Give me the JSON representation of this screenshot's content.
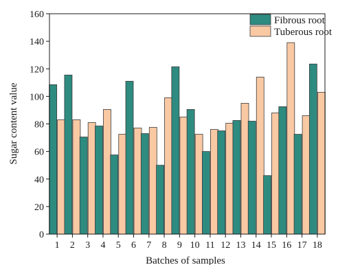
{
  "chart_data": {
    "type": "bar",
    "title": "",
    "xlabel": "Batches of samples",
    "ylabel": "Sugar content value",
    "ylim": [
      0,
      160
    ],
    "yticks": [
      0,
      20,
      40,
      60,
      80,
      100,
      120,
      140,
      160
    ],
    "categories": [
      "1",
      "2",
      "3",
      "4",
      "5",
      "6",
      "7",
      "8",
      "9",
      "10",
      "11",
      "12",
      "13",
      "14",
      "15",
      "16",
      "17",
      "18"
    ],
    "grid": false,
    "legend_position": "top-right",
    "series": [
      {
        "name": "Fibrous root",
        "color": "#2e8b80",
        "values": [
          108.5,
          115.5,
          70.5,
          78.5,
          57.5,
          111,
          73,
          50,
          121.5,
          90.5,
          60,
          75,
          82.5,
          82,
          42.5,
          92.5,
          72.5,
          123.5
        ]
      },
      {
        "name": "Tuberous root",
        "color": "#f9c9a4",
        "values": [
          83,
          83,
          81,
          90.5,
          72.5,
          77,
          77.5,
          99,
          85,
          72.5,
          76,
          80.5,
          95,
          114,
          88,
          139,
          86,
          103
        ]
      }
    ]
  }
}
